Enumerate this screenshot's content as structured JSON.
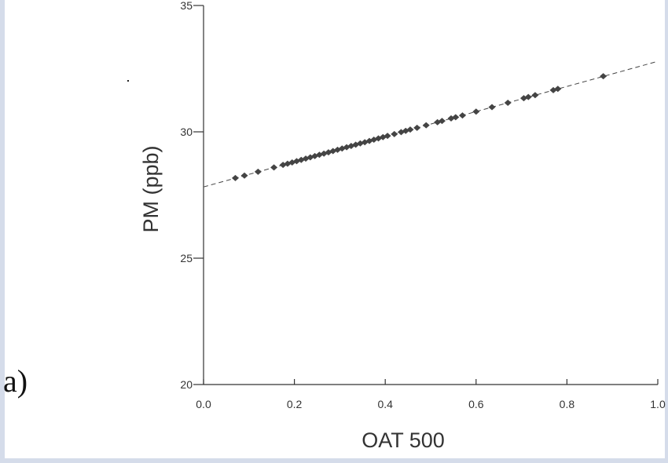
{
  "panel_label": "a)",
  "chart_data": {
    "type": "scatter",
    "xlabel": "OAT 500",
    "ylabel": "PM (ppb)",
    "xlim": [
      0.0,
      1.0
    ],
    "ylim": [
      20,
      35
    ],
    "x_ticks": [
      "0.0",
      "0.2",
      "0.4",
      "0.6",
      "0.8",
      "1.0"
    ],
    "y_ticks": [
      "20",
      "25",
      "30",
      "35"
    ],
    "grid": false,
    "legend": "none",
    "colors": {
      "points": "#444444",
      "axis": "#333333",
      "trendline": "#444444"
    },
    "trendline": {
      "style": "dashed",
      "intercept": 27.82,
      "slope": 4.97
    },
    "series": [
      {
        "x": [
          0.07,
          0.09,
          0.12,
          0.155,
          0.175,
          0.185,
          0.195,
          0.205,
          0.215,
          0.225,
          0.235,
          0.245,
          0.255,
          0.265,
          0.275,
          0.285,
          0.295,
          0.305,
          0.315,
          0.325,
          0.335,
          0.345,
          0.355,
          0.365,
          0.375,
          0.385,
          0.395,
          0.405,
          0.42,
          0.435,
          0.445,
          0.455,
          0.47,
          0.49,
          0.515,
          0.525,
          0.545,
          0.555,
          0.57,
          0.6,
          0.635,
          0.67,
          0.705,
          0.715,
          0.73,
          0.77,
          0.78,
          0.88
        ],
        "y": [
          28.17,
          28.27,
          28.42,
          28.59,
          28.69,
          28.74,
          28.79,
          28.84,
          28.89,
          28.94,
          28.99,
          29.04,
          29.09,
          29.14,
          29.19,
          29.24,
          29.29,
          29.34,
          29.39,
          29.44,
          29.49,
          29.54,
          29.59,
          29.64,
          29.69,
          29.74,
          29.79,
          29.84,
          29.91,
          29.99,
          30.04,
          30.09,
          30.16,
          30.26,
          30.38,
          30.43,
          30.53,
          30.58,
          30.65,
          30.8,
          30.98,
          31.15,
          31.33,
          31.38,
          31.45,
          31.65,
          31.7,
          32.2
        ]
      }
    ]
  }
}
